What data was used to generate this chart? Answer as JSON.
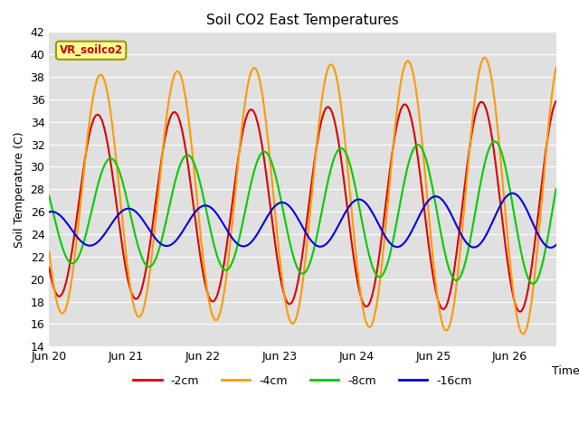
{
  "title": "Soil CO2 East Temperatures",
  "xlabel": "Time",
  "ylabel": "Soil Temperature (C)",
  "ylim": [
    14,
    42
  ],
  "yticks": [
    14,
    16,
    18,
    20,
    22,
    24,
    26,
    28,
    30,
    32,
    34,
    36,
    38,
    40,
    42
  ],
  "background_color": "#e0e0e0",
  "legend_label": "VR_soilco2",
  "series": {
    "-2cm": {
      "color": "#dd0000",
      "lw": 1.5
    },
    "-4cm": {
      "color": "#ff9900",
      "lw": 1.5
    },
    "-8cm": {
      "color": "#00cc00",
      "lw": 1.5
    },
    "-16cm": {
      "color": "#0000dd",
      "lw": 1.5
    }
  },
  "x_tick_labels": [
    "Jun 20",
    "Jun 21",
    "Jun 22",
    "Jun 23",
    "Jun 24",
    "Jun 25",
    "Jun 26"
  ],
  "x_tick_positions": [
    0,
    1,
    2,
    3,
    4,
    5,
    6
  ],
  "xlim": [
    0,
    6.6
  ],
  "num_points": 660
}
